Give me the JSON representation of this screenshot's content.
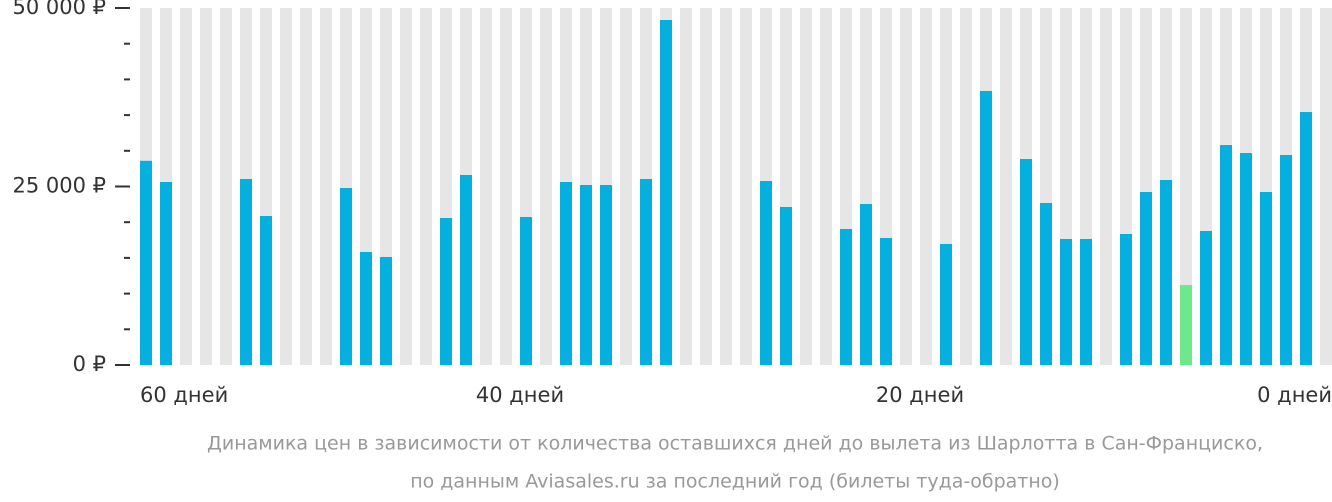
{
  "chart_data": {
    "type": "bar",
    "categories": [
      "60 дней",
      null,
      null,
      null,
      null,
      null,
      null,
      null,
      null,
      null,
      null,
      null,
      null,
      null,
      null,
      null,
      null,
      null,
      null,
      "40 дней",
      null,
      null,
      null,
      null,
      null,
      null,
      null,
      null,
      null,
      null,
      null,
      null,
      null,
      null,
      null,
      null,
      null,
      null,
      null,
      "20 дней",
      null,
      null,
      null,
      null,
      null,
      null,
      null,
      null,
      null,
      null,
      null,
      null,
      null,
      null,
      null,
      null,
      null,
      null,
      null,
      "0 дней"
    ],
    "values": [
      28600,
      25630,
      null,
      null,
      null,
      26050,
      20870,
      null,
      null,
      null,
      24790,
      15830,
      15130,
      null,
      null,
      20590,
      26610,
      null,
      null,
      20730,
      null,
      25630,
      25210,
      25210,
      null,
      26050,
      48320,
      null,
      null,
      null,
      null,
      25770,
      22130,
      null,
      null,
      19050,
      22550,
      17790,
      null,
      null,
      16950,
      null,
      38380,
      null,
      28850,
      22690,
      17650,
      17650,
      null,
      18350,
      24230,
      25910,
      11200,
      18770,
      30810,
      29690,
      24230,
      29410,
      35430,
      null
    ],
    "color": "#05b0de",
    "min_color": "#6de88a",
    "stripe_color": "#e6e6e6",
    "ylim": [
      0,
      50000
    ],
    "yticks": [
      {
        "value": 0,
        "label": "0 ₽"
      },
      {
        "value": 25000,
        "label": "25 000 ₽"
      },
      {
        "value": 50000,
        "label": "50 000 ₽"
      }
    ],
    "minor_yticks": [
      5000,
      10000,
      15000,
      20000,
      30000,
      35000,
      40000,
      45000
    ],
    "caption": [
      "Динамика цен в зависимости от количества оставшихся дней до вылета из Шарлотта в Сан-Франциско,",
      "по данным Aviasales.ru за последний год (билеты туда-обратно)"
    ]
  }
}
